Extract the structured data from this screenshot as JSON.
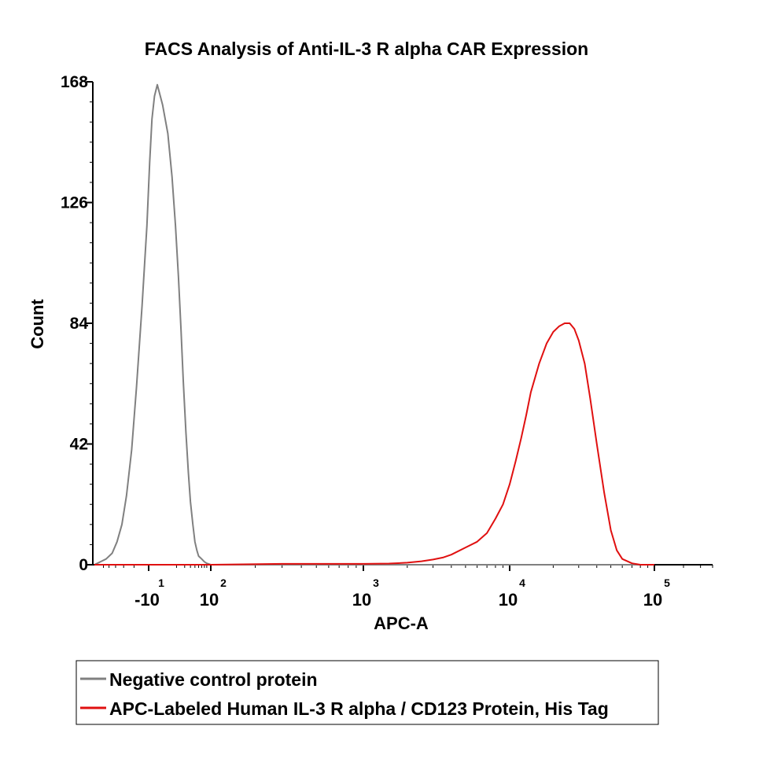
{
  "chart_data": {
    "type": "line",
    "title": "FACS Analysis of Anti-IL-3 R alpha CAR Expression",
    "xlabel": "APC-A",
    "ylabel": "Count",
    "x_scale": "biexponential (log)",
    "ylim": [
      0,
      168
    ],
    "yticks": [
      "0",
      "42",
      "84",
      "126",
      "168"
    ],
    "xticks": [
      {
        "base": "-10",
        "exp": "1",
        "value": -10
      },
      {
        "base": "10",
        "exp": "2",
        "value": 100
      },
      {
        "base": "10",
        "exp": "3",
        "value": 1000
      },
      {
        "base": "10",
        "exp": "4",
        "value": 10000
      },
      {
        "base": "10",
        "exp": "5",
        "value": 100000
      }
    ],
    "legend_position": "bottom",
    "series": [
      {
        "name": "Negative control protein",
        "color": "#808080",
        "x": [
          -80,
          -55,
          -45,
          -38,
          -32,
          -27,
          -22,
          -18,
          -14,
          -11,
          -9,
          -7,
          -5,
          -3,
          0,
          3,
          6,
          9,
          12,
          15,
          18,
          22,
          26,
          30,
          35,
          40,
          45,
          50,
          60,
          70,
          80,
          100,
          130,
          180,
          300,
          1000,
          10000,
          100000
        ],
        "y": [
          0,
          2,
          4,
          8,
          14,
          24,
          40,
          62,
          90,
          118,
          140,
          155,
          163,
          167,
          160,
          150,
          135,
          118,
          100,
          82,
          64,
          46,
          32,
          22,
          14,
          8,
          5,
          3,
          2,
          1,
          0.5,
          0,
          0,
          0,
          0,
          0,
          0,
          0
        ]
      },
      {
        "name": "APC-Labeled Human IL-3 R alpha / CD123 Protein, His Tag",
        "color": "#e01010",
        "x": [
          -80,
          100,
          300,
          800,
          1000,
          1500,
          2000,
          2500,
          3000,
          3500,
          4000,
          5000,
          6000,
          7000,
          8000,
          9000,
          10000,
          11000,
          12000,
          13000,
          14000,
          16000,
          18000,
          20000,
          22000,
          24000,
          26000,
          28000,
          30000,
          33000,
          36000,
          40000,
          45000,
          50000,
          55000,
          60000,
          70000,
          80000,
          100000
        ],
        "y": [
          0,
          0,
          0.3,
          0.3,
          0.3,
          0.4,
          0.7,
          1.2,
          1.8,
          2.5,
          3.5,
          6,
          8,
          11,
          16,
          21,
          28,
          36,
          44,
          52,
          60,
          70,
          77,
          81,
          83,
          84,
          84,
          82,
          78,
          70,
          58,
          42,
          25,
          12,
          5,
          2,
          0.5,
          0,
          0
        ]
      }
    ]
  }
}
